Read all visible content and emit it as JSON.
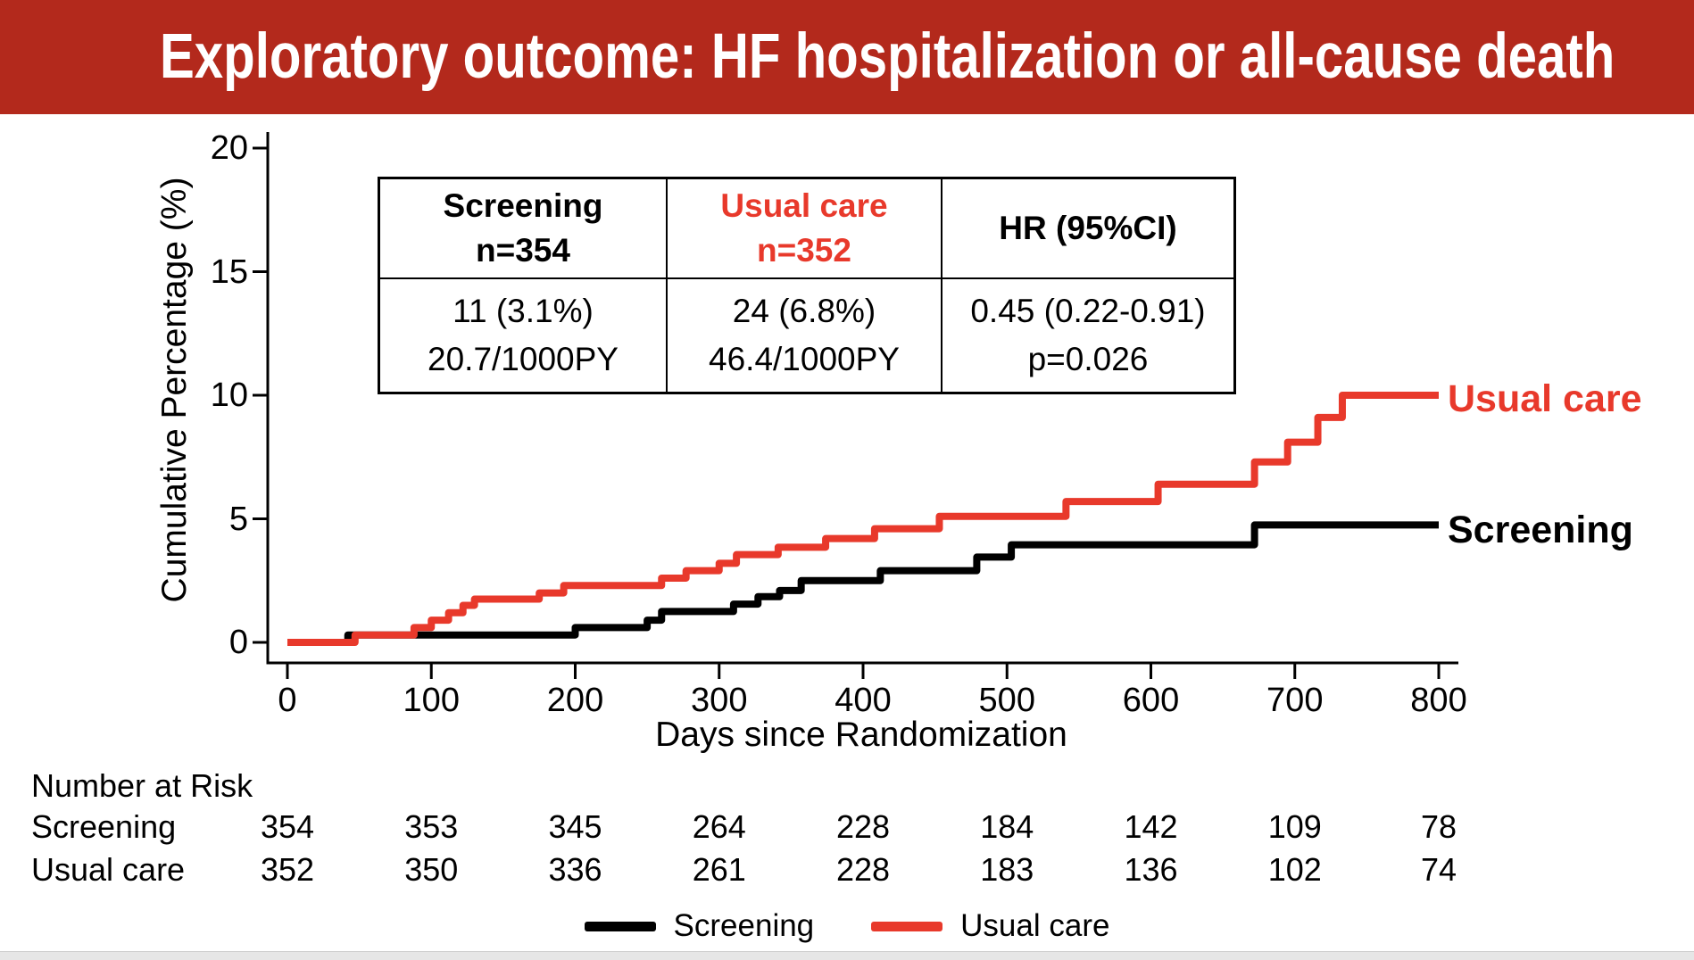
{
  "banner": {
    "title": "Exploratory outcome: HF hospitalization or all-cause death"
  },
  "colors": {
    "banner_red": "#B3291C",
    "series_red": "#E8392B",
    "series_black": "#000000",
    "bottom_bar_gray": "#E6E6E6"
  },
  "stats_table": {
    "columns": [
      {
        "header": [
          "Screening",
          "n=354"
        ],
        "rows": [
          "11 (3.1%)",
          "20.7/1000PY"
        ]
      },
      {
        "header": [
          "Usual care",
          "n=352"
        ],
        "rows": [
          "24 (6.8%)",
          "46.4/1000PY"
        ]
      },
      {
        "header": [
          "HR (95%CI)"
        ],
        "rows": [
          "0.45 (0.22-0.91)",
          "p=0.026"
        ]
      }
    ]
  },
  "chart_data": {
    "type": "line",
    "subtype": "kaplan-meier-step",
    "xlabel": "Days since Randomization",
    "ylabel": "Cumulative Percentage (%)",
    "xlim": [
      0,
      800
    ],
    "ylim": [
      0,
      20
    ],
    "x_ticks": [
      0,
      100,
      200,
      300,
      400,
      500,
      600,
      700,
      800
    ],
    "y_ticks": [
      0,
      5,
      10,
      15,
      20
    ],
    "grid": false,
    "legend_position": "bottom",
    "series": [
      {
        "name": "Screening",
        "end_label": "Screening",
        "color": "#000000",
        "steps": [
          [
            0,
            0
          ],
          [
            42,
            0.3
          ],
          [
            200,
            0.6
          ],
          [
            250,
            0.9
          ],
          [
            260,
            1.25
          ],
          [
            310,
            1.55
          ],
          [
            327,
            1.85
          ],
          [
            342,
            2.1
          ],
          [
            357,
            2.5
          ],
          [
            412,
            2.9
          ],
          [
            479,
            3.45
          ],
          [
            503,
            3.95
          ],
          [
            672,
            4.75
          ]
        ]
      },
      {
        "name": "Usual care",
        "end_label": "Usual care",
        "color": "#E8392B",
        "steps": [
          [
            0,
            0
          ],
          [
            47,
            0.3
          ],
          [
            88,
            0.6
          ],
          [
            100,
            0.9
          ],
          [
            112,
            1.2
          ],
          [
            122,
            1.5
          ],
          [
            130,
            1.75
          ],
          [
            175,
            2.0
          ],
          [
            192,
            2.3
          ],
          [
            260,
            2.6
          ],
          [
            277,
            2.9
          ],
          [
            300,
            3.2
          ],
          [
            312,
            3.55
          ],
          [
            341,
            3.85
          ],
          [
            374,
            4.2
          ],
          [
            408,
            4.6
          ],
          [
            453,
            5.1
          ],
          [
            541,
            5.7
          ],
          [
            605,
            6.4
          ],
          [
            672,
            7.3
          ],
          [
            695,
            8.1
          ],
          [
            716,
            9.1
          ],
          [
            733,
            10.0
          ]
        ]
      }
    ]
  },
  "risk_table": {
    "title": "Number at Risk",
    "rows": [
      {
        "label": "Screening",
        "values": [
          354,
          353,
          345,
          264,
          228,
          184,
          142,
          109,
          78
        ]
      },
      {
        "label": "Usual care",
        "values": [
          352,
          350,
          336,
          261,
          228,
          183,
          136,
          102,
          74
        ]
      }
    ]
  },
  "legend": {
    "items": [
      {
        "label": "Screening",
        "color": "#000000"
      },
      {
        "label": "Usual care",
        "color": "#E8392B"
      }
    ]
  }
}
